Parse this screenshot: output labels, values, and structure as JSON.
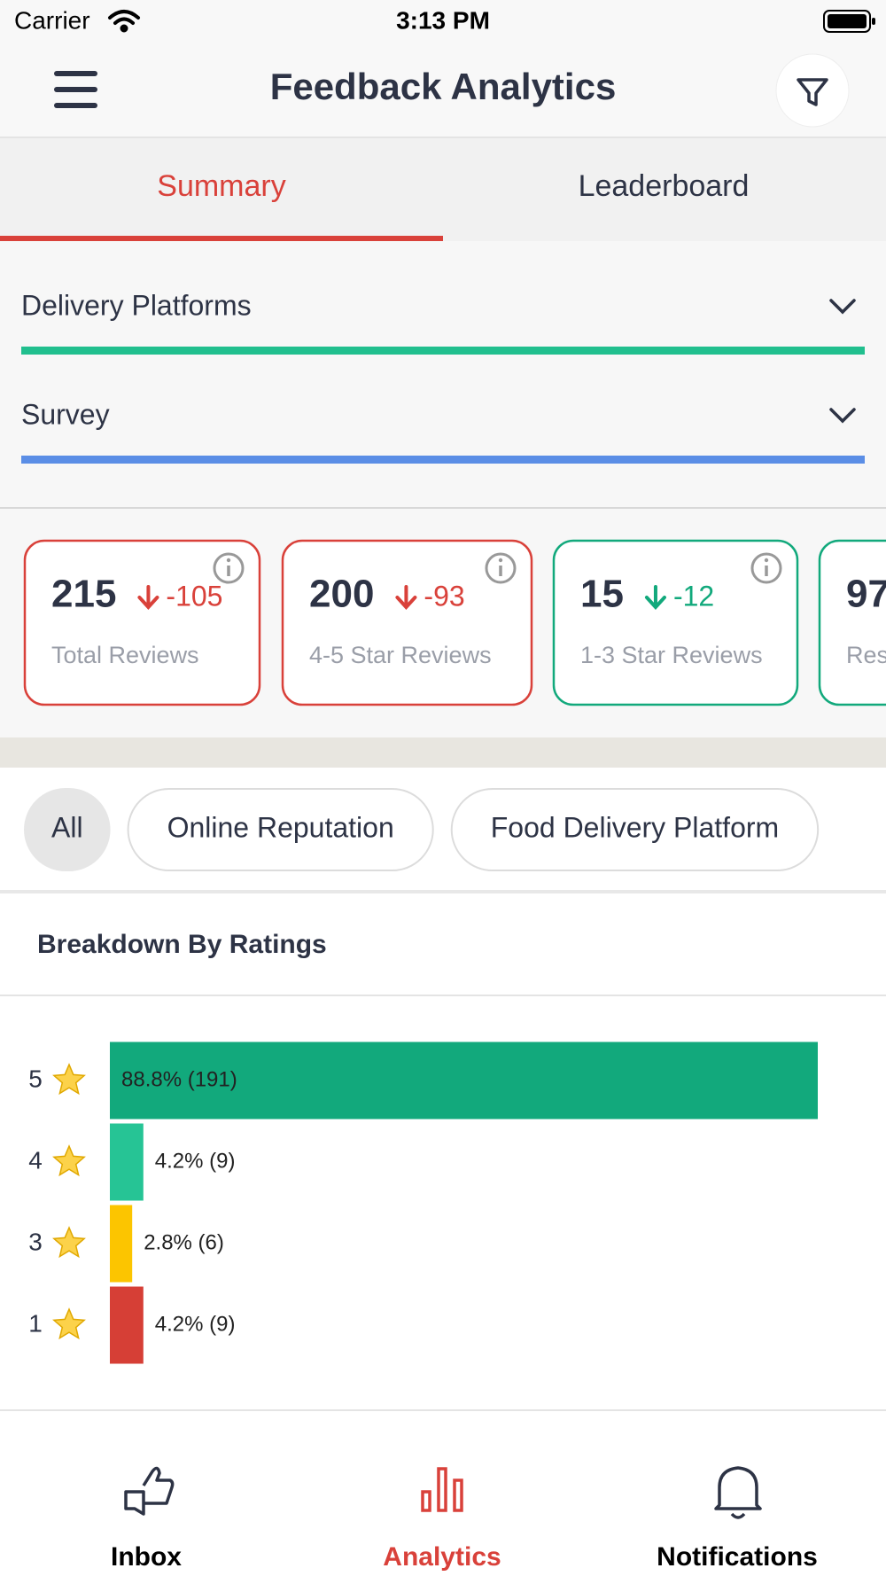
{
  "status_bar": {
    "carrier": "Carrier",
    "time": "3:13 PM"
  },
  "header": {
    "title": "Feedback Analytics"
  },
  "tabs": [
    "Summary",
    "Leaderboard"
  ],
  "filters": [
    {
      "label": "Delivery Platforms",
      "color": "#21bf8e"
    },
    {
      "label": "Survey",
      "color": "#5b8ee6"
    }
  ],
  "stat_cards": [
    {
      "value": 215,
      "change": -105,
      "label": "Total Reviews",
      "color": "#d9413a",
      "change_color": "#d9413a"
    },
    {
      "value": 200,
      "change": -93,
      "label": "4-5 Star Reviews",
      "color": "#d9413a",
      "change_color": "#d9413a"
    },
    {
      "value": 15,
      "change": -12,
      "label": "1-3 Star Reviews",
      "color": "#12a97c",
      "change_color": "#12a97c"
    },
    {
      "value": 97,
      "label": "Res",
      "color": "#12a97c"
    }
  ],
  "chips": [
    "All",
    "Online Reputation",
    "Food Delivery Platform"
  ],
  "breakdown": {
    "type": "bar",
    "title": "Breakdown By Ratings",
    "categories": [
      "5",
      "4",
      "3",
      "1"
    ],
    "values": [
      88.8,
      4.2,
      2.8,
      4.2
    ],
    "value_labels": [
      "88.8% (191)",
      "4.2% (9)",
      "2.8% (6)",
      "4.2% (9)"
    ],
    "colors": [
      "#12a97c",
      "#26c495",
      "#fcc500",
      "#d63f36"
    ]
  },
  "bottom_nav": [
    "Inbox",
    "Analytics",
    "Notifications"
  ]
}
